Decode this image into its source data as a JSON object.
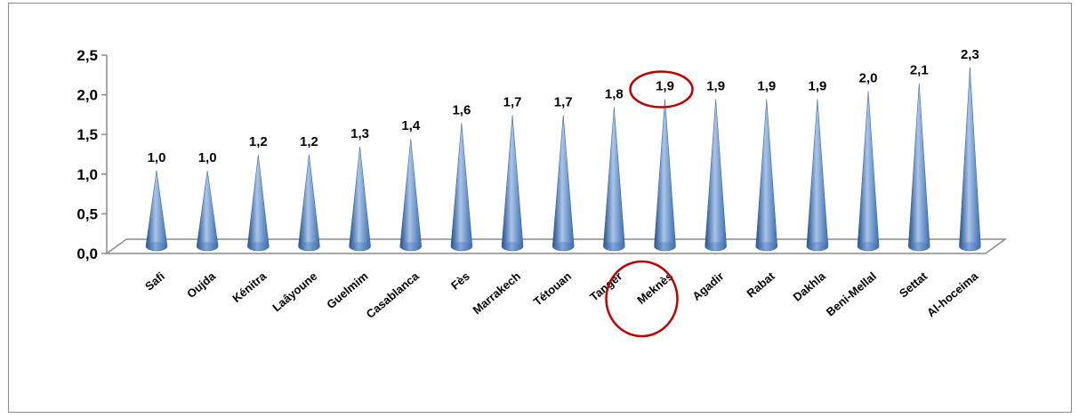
{
  "chart_data": {
    "type": "bar",
    "bar_shape": "cone",
    "categories": [
      "Safi",
      "Oujda",
      "Kénitra",
      "Laâyoune",
      "Guelmim",
      "Casablanca",
      "Fès",
      "Marrakech",
      "Tétouan",
      "Tanger",
      "Meknès",
      "Agadir",
      "Rabat",
      "Dakhla",
      "Beni-Mellal",
      "Settat",
      "Al-hoceima"
    ],
    "values": [
      1.0,
      1.0,
      1.2,
      1.2,
      1.3,
      1.4,
      1.6,
      1.7,
      1.7,
      1.8,
      1.9,
      1.9,
      1.9,
      1.9,
      2.0,
      2.1,
      2.3
    ],
    "value_labels": [
      "1,0",
      "1,0",
      "1,2",
      "1,2",
      "1,3",
      "1,4",
      "1,6",
      "1,7",
      "1,7",
      "1,8",
      "1,9",
      "1,9",
      "1,9",
      "1,9",
      "2,0",
      "2,1",
      "2,3"
    ],
    "y_ticks": [
      "0,0",
      "0,5",
      "1,0",
      "1,5",
      "2,0",
      "2,5"
    ],
    "ylim": [
      0,
      2.5
    ],
    "title": "",
    "xlabel": "",
    "ylabel": "",
    "grid": false,
    "legend": "none",
    "highlighted_category": "Meknès",
    "colors": {
      "cone_dark": "#1f4e8c",
      "cone_mid": "#4f81bd",
      "cone_light": "#a9c4e8",
      "highlight_circle": "#c00000",
      "axis": "#8c8c8c"
    }
  }
}
